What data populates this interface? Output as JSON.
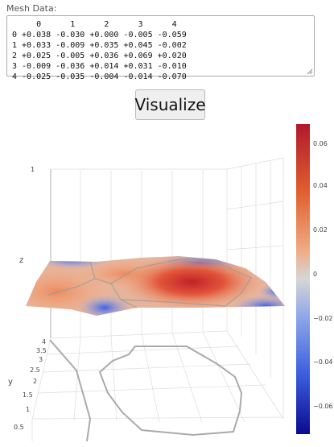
{
  "mesh": {
    "label": "Mesh Data:",
    "header": "     0      1      2      3      4",
    "rows": [
      "0 +0.038 -0.030 +0.000 -0.005 -0.059",
      "1 +0.033 -0.009 +0.035 +0.045 -0.002",
      "2 +0.025 -0.005 +0.036 +0.069 +0.020",
      "3 -0.009 -0.036 +0.014 +0.031 -0.010",
      "4 -0.025 -0.035 -0.004 -0.014 -0.070"
    ]
  },
  "button": {
    "label": "Visualize"
  },
  "plot": {
    "axes": {
      "z": "z",
      "y": "y"
    },
    "z_ticks": [
      "1"
    ],
    "y_ticks": [
      "4",
      "3.5",
      "3",
      "2.5",
      "2",
      "1.5",
      "1",
      "0.5"
    ],
    "colorbar": {
      "ticks": [
        "0.06",
        "0.04",
        "0.02",
        "0",
        "−0.02",
        "−0.04",
        "−0.06"
      ],
      "min": -0.07,
      "max": 0.07,
      "colorscale": [
        "#0a0a8f",
        "#3d62e0",
        "#8fa8e8",
        "#d6d6d6",
        "#f0a880",
        "#e0602e",
        "#b2182b"
      ]
    }
  }
}
